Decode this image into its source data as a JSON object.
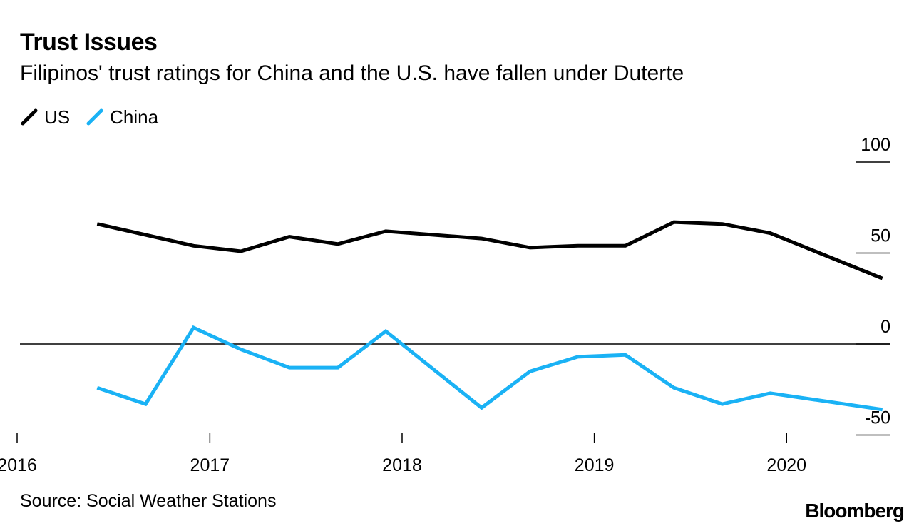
{
  "header": {
    "title": "Trust Issues",
    "subtitle": "Filipinos' trust ratings for China and the U.S. have fallen under Duterte"
  },
  "legend": [
    {
      "label": "US",
      "color": "#000000"
    },
    {
      "label": "China",
      "color": "#1ab2f5"
    }
  ],
  "footer": {
    "source": "Source: Social Weather Stations",
    "brand": "Bloomberg"
  },
  "chart_data": {
    "type": "line",
    "title": "Trust Issues",
    "subtitle": "Filipinos' trust ratings for China and the U.S. have fallen under Duterte",
    "xlabel": "",
    "ylabel": "",
    "xlim": [
      "2016-01-01",
      "2020-10-01"
    ],
    "ylim": [
      -50,
      100
    ],
    "y_ticks": [
      100,
      50,
      0,
      -50
    ],
    "x_ticks": [
      "2016",
      "2017",
      "2018",
      "2019",
      "2020"
    ],
    "zero_line": true,
    "legend_position": "top-left",
    "series": [
      {
        "name": "US",
        "color": "#000000",
        "points": [
          {
            "x": "2016-06-01",
            "y": 66
          },
          {
            "x": "2016-09-01",
            "y": 60
          },
          {
            "x": "2016-12-01",
            "y": 54
          },
          {
            "x": "2017-03-01",
            "y": 51
          },
          {
            "x": "2017-06-01",
            "y": 59
          },
          {
            "x": "2017-09-01",
            "y": 55
          },
          {
            "x": "2017-12-01",
            "y": 62
          },
          {
            "x": "2018-06-01",
            "y": 58
          },
          {
            "x": "2018-09-01",
            "y": 53
          },
          {
            "x": "2018-12-01",
            "y": 54
          },
          {
            "x": "2019-03-01",
            "y": 54
          },
          {
            "x": "2019-06-01",
            "y": 67
          },
          {
            "x": "2019-09-01",
            "y": 66
          },
          {
            "x": "2019-12-01",
            "y": 61
          },
          {
            "x": "2020-07-01",
            "y": 36
          }
        ]
      },
      {
        "name": "China",
        "color": "#1ab2f5",
        "points": [
          {
            "x": "2016-06-01",
            "y": -24
          },
          {
            "x": "2016-09-01",
            "y": -33
          },
          {
            "x": "2016-12-01",
            "y": 9
          },
          {
            "x": "2017-03-01",
            "y": -3
          },
          {
            "x": "2017-06-01",
            "y": -13
          },
          {
            "x": "2017-09-01",
            "y": -13
          },
          {
            "x": "2017-12-01",
            "y": 7
          },
          {
            "x": "2018-06-01",
            "y": -35
          },
          {
            "x": "2018-09-01",
            "y": -15
          },
          {
            "x": "2018-12-01",
            "y": -7
          },
          {
            "x": "2019-03-01",
            "y": -6
          },
          {
            "x": "2019-06-01",
            "y": -24
          },
          {
            "x": "2019-09-01",
            "y": -33
          },
          {
            "x": "2019-12-01",
            "y": -27
          },
          {
            "x": "2020-07-01",
            "y": -36
          }
        ]
      }
    ]
  }
}
